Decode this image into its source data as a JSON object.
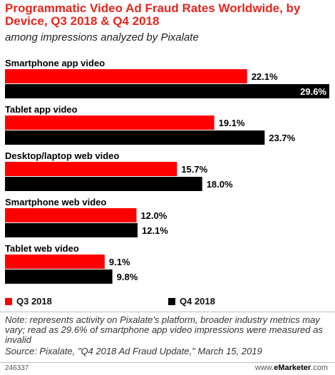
{
  "chart_data": {
    "type": "bar",
    "orientation": "horizontal",
    "title": "Programmatic Video Ad Fraud Rates Worldwide, by Device, Q3 2018 & Q4 2018",
    "subtitle": "among impressions analyzed by Pixalate",
    "categories": [
      "Smartphone app video",
      "Tablet app video",
      "Desktop/laptop web video",
      "Smartphone web video",
      "Tablet web video"
    ],
    "series": [
      {
        "name": "Q3 2018",
        "color": "#ff0000",
        "values": [
          22.1,
          19.1,
          15.7,
          12.0,
          9.1
        ],
        "labels": [
          "22.1%",
          "19.1%",
          "15.7%",
          "12.0%",
          "9.1%"
        ]
      },
      {
        "name": "Q4 2018",
        "color": "#000000",
        "values": [
          29.6,
          23.7,
          18.0,
          12.1,
          9.8
        ],
        "labels": [
          "29.6%",
          "23.7%",
          "18.0%",
          "12.1%",
          "9.8%"
        ]
      }
    ],
    "xlim": [
      0,
      29.6
    ],
    "legend_position": "bottom",
    "grid": false
  },
  "note": "Note: represents activity on Pixalate's platform, broader industry metrics may vary; read as 29.6% of smartphone app video impressions were measured as invalid",
  "source": "Source: Pixalate, \"Q4 2018 Ad Fraud Update,\" March 15, 2019",
  "footer": {
    "chart_id": "246337",
    "brand_prefix": "www.",
    "brand_name": "eMarketer",
    "brand_suffix": ".com"
  },
  "colors": {
    "title": "#e8251d",
    "q3": "#ff0000",
    "q4": "#000000"
  }
}
